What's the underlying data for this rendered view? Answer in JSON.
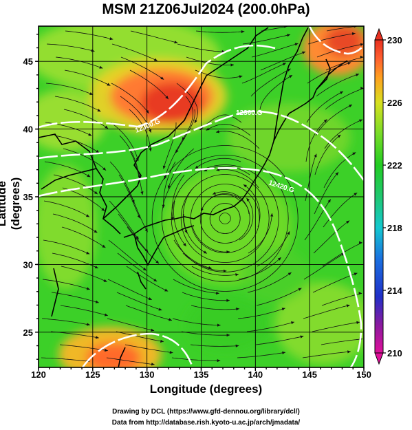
{
  "title": "MSM 21Z06Jul2024 (200.0hPa)",
  "axes": {
    "xlabel": "Longitude (degrees)",
    "ylabel": "Latitude  (degrees)",
    "x_ticks": [
      "120",
      "125",
      "130",
      "135",
      "140",
      "145",
      "150"
    ],
    "y_ticks": [
      "25",
      "30",
      "35",
      "40",
      "45"
    ],
    "xlim": [
      120,
      150
    ],
    "ylim": [
      22.4,
      47.6
    ]
  },
  "colorbar": {
    "ticks": [
      "230",
      "226",
      "222",
      "218",
      "214",
      "210"
    ],
    "range": [
      210,
      230
    ],
    "colors": [
      "#e0109a",
      "#8a1aa0",
      "#2030c8",
      "#1a70e0",
      "#14c8d0",
      "#20c870",
      "#22cc22",
      "#78dc28",
      "#d8e020",
      "#ffa020",
      "#ff6030",
      "#e83020"
    ]
  },
  "contour_labels": [
    "12300.G",
    "12360.G",
    "12420.G"
  ],
  "credits": {
    "line1": "Drawing by DCL (https://www.gfd-dennou.org/library/dcl/)",
    "line2": "Data from http://database.rish.kyoto-u.ac.jp/arch/jmadata/"
  }
}
